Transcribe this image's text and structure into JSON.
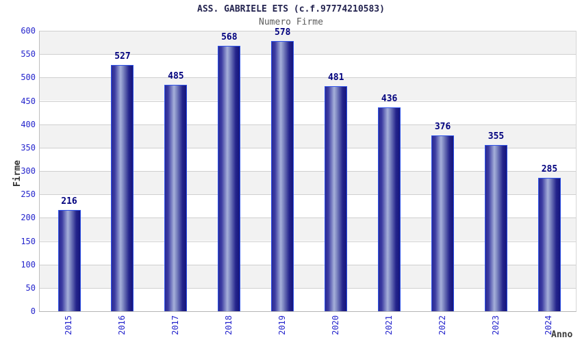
{
  "chart_data": {
    "type": "bar",
    "title": "ASS. GABRIELE ETS (c.f.97774210583)",
    "subtitle": "Numero Firme",
    "xlabel": "Anno",
    "ylabel": "Firme",
    "categories": [
      "2015",
      "2016",
      "2017",
      "2018",
      "2019",
      "2020",
      "2021",
      "2022",
      "2023",
      "2024"
    ],
    "values": [
      216,
      527,
      485,
      568,
      578,
      481,
      436,
      376,
      355,
      285
    ],
    "yticks": [
      0,
      50,
      100,
      150,
      200,
      250,
      300,
      350,
      400,
      450,
      500,
      550,
      600
    ],
    "ylim": [
      0,
      600
    ],
    "ytick_step": 50,
    "grid": "horizontal gridlines with alternating gray/white bands",
    "legend": "none",
    "colors": {
      "bar_dark": "#1c1c84",
      "bar_highlight": "#a6b0da",
      "bar_border": "#2d51e8",
      "tick_label": "#2424cc",
      "value_label": "#00007e",
      "band_gray": "#f2f2f2",
      "band_white": "#ffffff",
      "grid_line": "#cfcfcf",
      "title_color": "#23234f",
      "subtitle_color": "#5c5c5c",
      "axis_label_color": "#333333",
      "background": "#ffffff"
    }
  }
}
